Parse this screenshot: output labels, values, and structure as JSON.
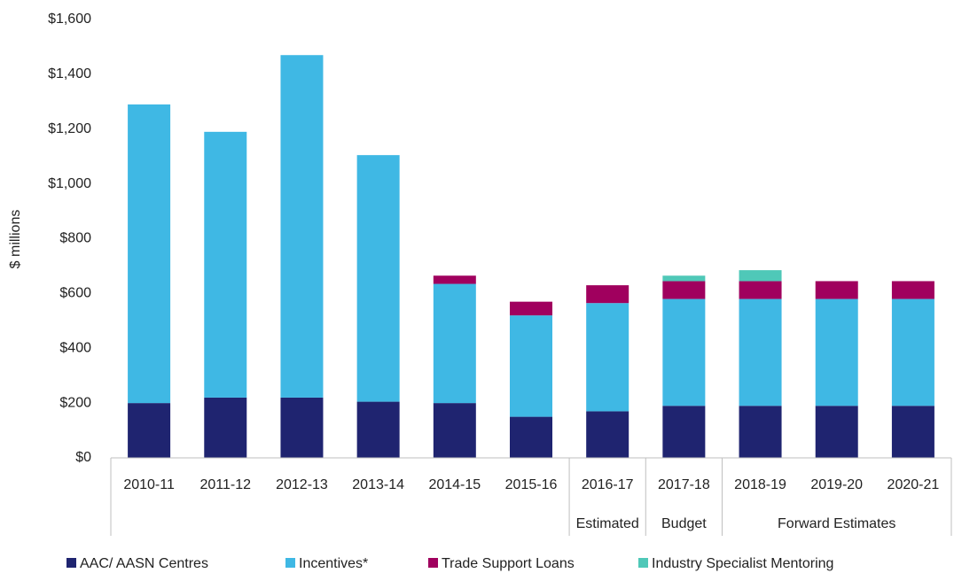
{
  "chart_data": {
    "type": "stacked_bar",
    "y_label": "$ millions",
    "categories": [
      "2010-11",
      "2011-12",
      "2012-13",
      "2013-14",
      "2014-15",
      "2015-16",
      "2016-17",
      "2017-18",
      "2018-19",
      "2019-20",
      "2020-21"
    ],
    "category_groups": [
      {
        "label": null,
        "span": 6
      },
      {
        "label": "Estimated",
        "span": 1
      },
      {
        "label": "Budget",
        "span": 1
      },
      {
        "label": "Forward Estimates",
        "span": 3
      }
    ],
    "series": [
      {
        "name": "AAC/ AASN Centres",
        "color": "#1f2470",
        "values": [
          200,
          220,
          220,
          205,
          200,
          150,
          170,
          190,
          190,
          190,
          190
        ]
      },
      {
        "name": "Incentives*",
        "color": "#3fb8e4",
        "values": [
          1090,
          970,
          1250,
          900,
          435,
          370,
          395,
          390,
          390,
          390,
          390
        ]
      },
      {
        "name": "Trade Support Loans",
        "color": "#a0005e",
        "values": [
          null,
          null,
          null,
          null,
          30,
          50,
          65,
          65,
          65,
          65,
          65
        ]
      },
      {
        "name": "Industry Specialist Mentoring",
        "color": "#4fc8b8",
        "values": [
          null,
          null,
          null,
          null,
          null,
          null,
          null,
          20,
          40,
          null,
          null
        ]
      }
    ],
    "ylim": [
      0,
      1600
    ],
    "yticks": [
      {
        "value": 0,
        "label": "$0"
      },
      {
        "value": 200,
        "label": "$200"
      },
      {
        "value": 400,
        "label": "$400"
      },
      {
        "value": 600,
        "label": "$600"
      },
      {
        "value": 800,
        "label": "$800"
      },
      {
        "value": 1000,
        "label": "$1,000"
      },
      {
        "value": 1200,
        "label": "$1,200"
      },
      {
        "value": 1400,
        "label": "$1,400"
      },
      {
        "value": 1600,
        "label": "$1,600"
      }
    ],
    "grid": false,
    "legend": "bottom"
  }
}
